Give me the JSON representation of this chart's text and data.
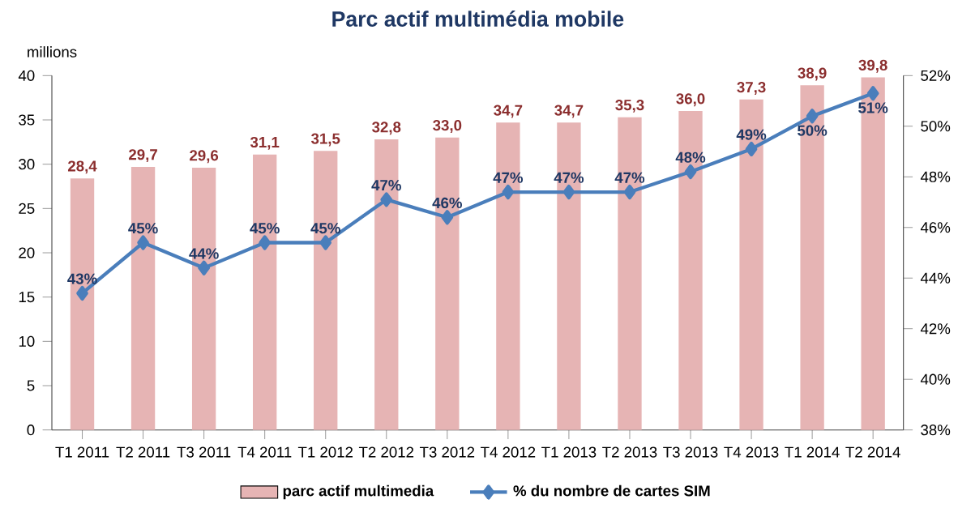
{
  "chart_data": {
    "type": "bar",
    "title": "Parc actif multimédia mobile",
    "ylabel": "millions",
    "categories": [
      "T1 2011",
      "T2 2011",
      "T3 2011",
      "T4 2011",
      "T1 2012",
      "T2 2012",
      "T3 2012",
      "T4 2012",
      "T1 2013",
      "T2 2013",
      "T3 2013",
      "T4 2013",
      "T1 2014",
      "T2 2014"
    ],
    "series": [
      {
        "name": "parc actif multimedia",
        "color": "#e6b4b4",
        "values": [
          28.4,
          29.7,
          29.6,
          31.1,
          31.5,
          32.8,
          33.0,
          34.7,
          34.7,
          35.3,
          36.0,
          37.3,
          38.9,
          39.8
        ],
        "value_labels": [
          "28,4",
          "29,7",
          "29,6",
          "31,1",
          "31,5",
          "32,8",
          "33,0",
          "34,7",
          "34,7",
          "35,3",
          "36,0",
          "37,3",
          "38,9",
          "39,8"
        ]
      },
      {
        "name": "% du nombre de cartes SIM",
        "type": "line",
        "axis": "y2",
        "color": "#4a7ebb",
        "marker": "diamond",
        "values": [
          43.4,
          45.4,
          44.4,
          45.4,
          45.4,
          47.1,
          46.4,
          47.4,
          47.4,
          47.4,
          48.2,
          49.1,
          50.4,
          51.3
        ],
        "value_labels": [
          "43%",
          "45%",
          "44%",
          "45%",
          "45%",
          "47%",
          "46%",
          "47%",
          "47%",
          "47%",
          "48%",
          "49%",
          "50%",
          "51%"
        ]
      }
    ],
    "ylim": [
      0,
      40
    ],
    "yticks": [
      0,
      5,
      10,
      15,
      20,
      25,
      30,
      35,
      40
    ],
    "y2lim": [
      38,
      52
    ],
    "y2ticks": [
      {
        "value": 38,
        "label": "38%"
      },
      {
        "value": 40,
        "label": "40%"
      },
      {
        "value": 42,
        "label": "42%"
      },
      {
        "value": 44,
        "label": "44%"
      },
      {
        "value": 46,
        "label": "46%"
      },
      {
        "value": 48,
        "label": "48%"
      },
      {
        "value": 50,
        "label": "50%"
      },
      {
        "value": 52,
        "label": "52%"
      }
    ],
    "legend": "bottom"
  }
}
